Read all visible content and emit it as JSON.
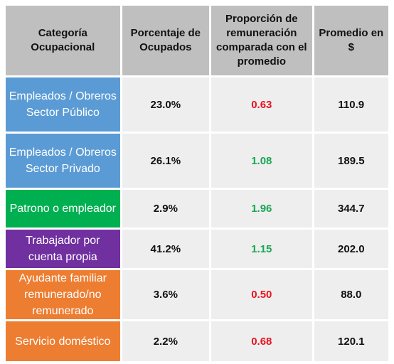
{
  "headers": {
    "category": "Categoría Ocupacional",
    "percent": "Porcentaje de Ocupados",
    "ratio": "Proporción de remuneración comparada con el promedio",
    "average": "Promedio en $"
  },
  "colors": {
    "header_bg": "#bfbfbf",
    "cell_bg": "#eeeeee",
    "ratio_low": "#ff0000",
    "ratio_high": "#00b050",
    "cat_public": "#5b9bd5",
    "cat_private": "#5b9bd5",
    "cat_employer": "#00b050",
    "cat_self": "#7030a0",
    "cat_family": "#ed7d31",
    "cat_domestic": "#ed7d31"
  },
  "rows": [
    {
      "category": "Empleados / Obreros Sector Público",
      "percent": "23.0%",
      "ratio": "0.63",
      "ratio_color": "#e8121f",
      "average": "110.9",
      "bg": "#5b9bd5"
    },
    {
      "category": "Empleados / Obreros Sector Privado",
      "percent": "26.1%",
      "ratio": "1.08",
      "ratio_color": "#1aa654",
      "average": "189.5",
      "bg": "#5b9bd5"
    },
    {
      "category": "Patrono o empleador",
      "percent": "2.9%",
      "ratio": "1.96",
      "ratio_color": "#1aa654",
      "average": "344.7",
      "bg": "#00b050"
    },
    {
      "category": "Trabajador por cuenta propia",
      "percent": "41.2%",
      "ratio": "1.15",
      "ratio_color": "#1aa654",
      "average": "202.0",
      "bg": "#7030a0"
    },
    {
      "category": "Ayudante familiar remunerado/no remunerado",
      "percent": "3.6%",
      "ratio": "0.50",
      "ratio_color": "#e8121f",
      "average": "88.0",
      "bg": "#ed7d31"
    },
    {
      "category": "Servicio doméstico",
      "percent": "2.2%",
      "ratio": "0.68",
      "ratio_color": "#e8121f",
      "average": "120.1",
      "bg": "#ed7d31"
    }
  ]
}
